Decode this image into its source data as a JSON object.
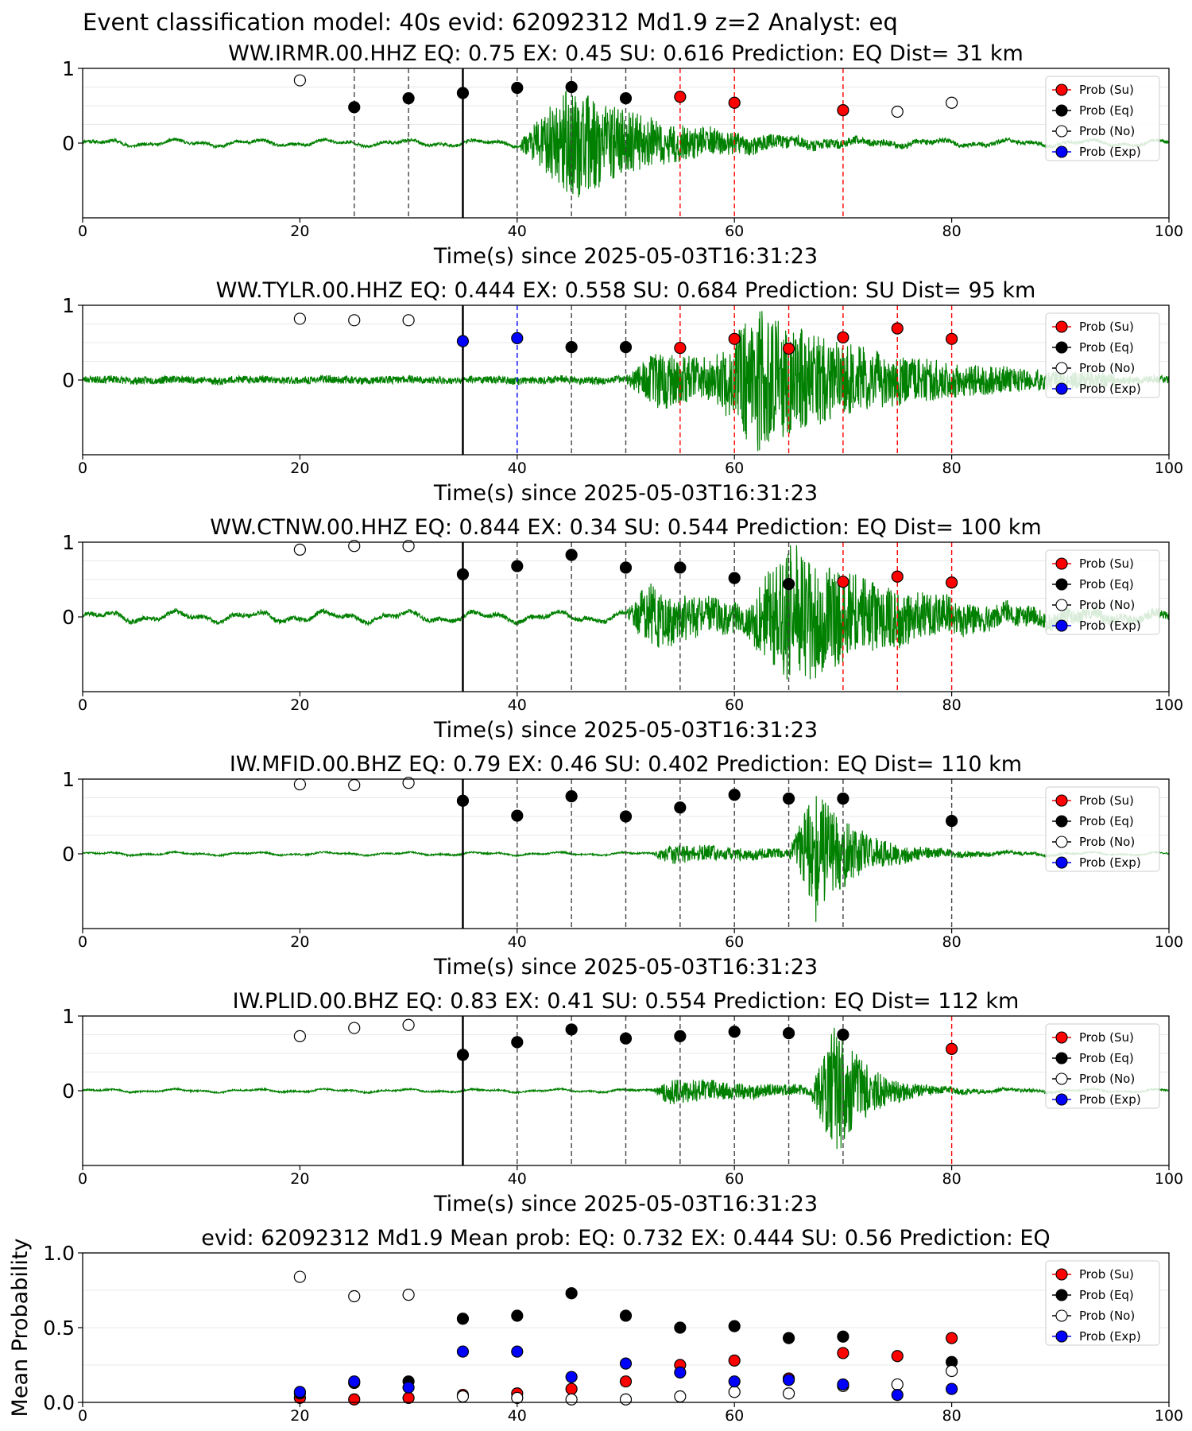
{
  "figure": {
    "suptitle": "Event classification model: 40s evid: 62092312 Md1.9 z=2 Analyst: eq"
  },
  "legend": {
    "entries": [
      {
        "name": "Prob (Su)",
        "color": "#ff0000",
        "fill": "#ff0000"
      },
      {
        "name": "Prob (Eq)",
        "color": "#000000",
        "fill": "#000000"
      },
      {
        "name": "Prob (No)",
        "color": "#000000",
        "fill": "#ffffff"
      },
      {
        "name": "Prob (Exp)",
        "color": "#0000ff",
        "fill": "#0000ff"
      }
    ]
  },
  "colors": {
    "waveform": "#008000",
    "su": "#ff0000",
    "eq": "#000000",
    "no": "#ffffff",
    "exp": "#0000ff"
  },
  "chart_data": [
    {
      "type": "scatter",
      "title": "WW.IRMR.00.HHZ   EQ: 0.75  EX: 0.45  SU: 0.616   Prediction: EQ    Dist= 31 km",
      "xlabel": "Time(s) since 2025-05-03T16:31:23",
      "ylabel": "",
      "xlim": [
        0,
        100
      ],
      "ylim": [
        -1,
        1
      ],
      "xticks": [
        "0",
        "20",
        "40",
        "60",
        "80",
        "100"
      ],
      "yticks": [
        "0",
        "1"
      ],
      "pick_time": 35,
      "vlines": [
        {
          "x": 25,
          "class": "eq"
        },
        {
          "x": 30,
          "class": "eq"
        },
        {
          "x": 40,
          "class": "eq"
        },
        {
          "x": 45,
          "class": "eq"
        },
        {
          "x": 50,
          "class": "eq"
        },
        {
          "x": 55,
          "class": "su"
        },
        {
          "x": 60,
          "class": "su"
        },
        {
          "x": 70,
          "class": "su"
        }
      ],
      "points": [
        {
          "x": 20,
          "y": 0.84,
          "class": "no"
        },
        {
          "x": 25,
          "y": 0.48,
          "class": "eq"
        },
        {
          "x": 30,
          "y": 0.6,
          "class": "eq"
        },
        {
          "x": 35,
          "y": 0.67,
          "class": "eq"
        },
        {
          "x": 40,
          "y": 0.74,
          "class": "eq"
        },
        {
          "x": 45,
          "y": 0.75,
          "class": "eq"
        },
        {
          "x": 50,
          "y": 0.6,
          "class": "eq"
        },
        {
          "x": 55,
          "y": 0.62,
          "class": "su"
        },
        {
          "x": 60,
          "y": 0.54,
          "class": "su"
        },
        {
          "x": 70,
          "y": 0.44,
          "class": "su"
        },
        {
          "x": 75,
          "y": 0.42,
          "class": "no"
        },
        {
          "x": 80,
          "y": 0.54,
          "class": "no"
        }
      ],
      "waveform": {
        "seed": 11,
        "noise": 0.02,
        "sway": 0.03,
        "bursts": [
          {
            "start": 40,
            "end": 90,
            "peak": 45,
            "amp": 0.75,
            "decay": 0.12
          }
        ]
      }
    },
    {
      "type": "scatter",
      "title": "WW.TYLR.00.HHZ   EQ: 0.444  EX: 0.558  SU: 0.684   Prediction: SU    Dist= 95 km",
      "xlabel": "Time(s) since 2025-05-03T16:31:23",
      "ylabel": "",
      "xlim": [
        0,
        100
      ],
      "ylim": [
        -1,
        1
      ],
      "xticks": [
        "0",
        "20",
        "40",
        "60",
        "80",
        "100"
      ],
      "yticks": [
        "0",
        "1"
      ],
      "pick_time": 35,
      "vlines": [
        {
          "x": 40,
          "class": "exp"
        },
        {
          "x": 45,
          "class": "eq"
        },
        {
          "x": 50,
          "class": "eq"
        },
        {
          "x": 55,
          "class": "su"
        },
        {
          "x": 60,
          "class": "su"
        },
        {
          "x": 65,
          "class": "su"
        },
        {
          "x": 70,
          "class": "su"
        },
        {
          "x": 75,
          "class": "su"
        },
        {
          "x": 80,
          "class": "su"
        }
      ],
      "points": [
        {
          "x": 20,
          "y": 0.82,
          "class": "no"
        },
        {
          "x": 25,
          "y": 0.8,
          "class": "no"
        },
        {
          "x": 30,
          "y": 0.8,
          "class": "no"
        },
        {
          "x": 35,
          "y": 0.52,
          "class": "exp"
        },
        {
          "x": 40,
          "y": 0.56,
          "class": "exp"
        },
        {
          "x": 45,
          "y": 0.44,
          "class": "eq"
        },
        {
          "x": 50,
          "y": 0.44,
          "class": "eq"
        },
        {
          "x": 55,
          "y": 0.43,
          "class": "su"
        },
        {
          "x": 60,
          "y": 0.55,
          "class": "su"
        },
        {
          "x": 65,
          "y": 0.42,
          "class": "su"
        },
        {
          "x": 70,
          "y": 0.57,
          "class": "su"
        },
        {
          "x": 75,
          "y": 0.69,
          "class": "su"
        },
        {
          "x": 80,
          "y": 0.55,
          "class": "su"
        }
      ],
      "waveform": {
        "seed": 23,
        "noise": 0.05,
        "sway": 0.01,
        "bursts": [
          {
            "start": 50,
            "end": 95,
            "peak": 53,
            "amp": 0.35,
            "decay": 0.08
          },
          {
            "start": 58,
            "end": 95,
            "peak": 62,
            "amp": 0.75,
            "decay": 0.09
          }
        ]
      }
    },
    {
      "type": "scatter",
      "title": "WW.CTNW.00.HHZ   EQ: 0.844  EX: 0.34  SU: 0.544   Prediction: EQ    Dist= 100 km",
      "xlabel": "Time(s) since 2025-05-03T16:31:23",
      "ylabel": "",
      "xlim": [
        0,
        100
      ],
      "ylim": [
        -1,
        1
      ],
      "xticks": [
        "0",
        "20",
        "40",
        "60",
        "80",
        "100"
      ],
      "yticks": [
        "0",
        "1"
      ],
      "pick_time": 35,
      "vlines": [
        {
          "x": 40,
          "class": "eq"
        },
        {
          "x": 45,
          "class": "eq"
        },
        {
          "x": 50,
          "class": "eq"
        },
        {
          "x": 55,
          "class": "eq"
        },
        {
          "x": 60,
          "class": "eq"
        },
        {
          "x": 65,
          "class": "eq"
        },
        {
          "x": 70,
          "class": "su"
        },
        {
          "x": 75,
          "class": "su"
        },
        {
          "x": 80,
          "class": "su"
        }
      ],
      "points": [
        {
          "x": 20,
          "y": 0.9,
          "class": "no"
        },
        {
          "x": 25,
          "y": 0.95,
          "class": "no"
        },
        {
          "x": 30,
          "y": 0.95,
          "class": "no"
        },
        {
          "x": 35,
          "y": 0.57,
          "class": "eq"
        },
        {
          "x": 40,
          "y": 0.68,
          "class": "eq"
        },
        {
          "x": 45,
          "y": 0.83,
          "class": "eq"
        },
        {
          "x": 50,
          "y": 0.66,
          "class": "eq"
        },
        {
          "x": 55,
          "y": 0.66,
          "class": "eq"
        },
        {
          "x": 60,
          "y": 0.52,
          "class": "eq"
        },
        {
          "x": 65,
          "y": 0.44,
          "class": "eq"
        },
        {
          "x": 70,
          "y": 0.47,
          "class": "su"
        },
        {
          "x": 75,
          "y": 0.54,
          "class": "su"
        },
        {
          "x": 80,
          "y": 0.46,
          "class": "su"
        }
      ],
      "waveform": {
        "seed": 37,
        "noise": 0.03,
        "sway": 0.05,
        "bursts": [
          {
            "start": 50,
            "end": 100,
            "peak": 52,
            "amp": 0.4,
            "decay": 0.1
          },
          {
            "start": 61,
            "end": 100,
            "peak": 65,
            "amp": 0.85,
            "decay": 0.1
          }
        ]
      }
    },
    {
      "type": "scatter",
      "title": "IW.MFID.00.BHZ   EQ: 0.79  EX: 0.46  SU: 0.402   Prediction: EQ    Dist= 110 km",
      "xlabel": "Time(s) since 2025-05-03T16:31:23",
      "ylabel": "",
      "xlim": [
        0,
        100
      ],
      "ylim": [
        -1,
        1
      ],
      "xticks": [
        "0",
        "20",
        "40",
        "60",
        "80",
        "100"
      ],
      "yticks": [
        "0",
        "1"
      ],
      "pick_time": 35,
      "vlines": [
        {
          "x": 40,
          "class": "eq"
        },
        {
          "x": 45,
          "class": "eq"
        },
        {
          "x": 50,
          "class": "eq"
        },
        {
          "x": 55,
          "class": "eq"
        },
        {
          "x": 60,
          "class": "eq"
        },
        {
          "x": 65,
          "class": "eq"
        },
        {
          "x": 70,
          "class": "eq"
        },
        {
          "x": 80,
          "class": "eq"
        }
      ],
      "points": [
        {
          "x": 20,
          "y": 0.93,
          "class": "no"
        },
        {
          "x": 25,
          "y": 0.92,
          "class": "no"
        },
        {
          "x": 30,
          "y": 0.95,
          "class": "no"
        },
        {
          "x": 35,
          "y": 0.71,
          "class": "eq"
        },
        {
          "x": 40,
          "y": 0.51,
          "class": "eq"
        },
        {
          "x": 45,
          "y": 0.77,
          "class": "eq"
        },
        {
          "x": 50,
          "y": 0.5,
          "class": "eq"
        },
        {
          "x": 55,
          "y": 0.62,
          "class": "eq"
        },
        {
          "x": 60,
          "y": 0.79,
          "class": "eq"
        },
        {
          "x": 65,
          "y": 0.74,
          "class": "eq"
        },
        {
          "x": 70,
          "y": 0.74,
          "class": "eq"
        },
        {
          "x": 80,
          "y": 0.44,
          "class": "eq"
        }
      ],
      "waveform": {
        "seed": 51,
        "noise": 0.01,
        "sway": 0.015,
        "bursts": [
          {
            "start": 52.5,
            "end": 90,
            "peak": 54,
            "amp": 0.12,
            "decay": 0.08
          },
          {
            "start": 65,
            "end": 95,
            "peak": 67.5,
            "amp": 0.85,
            "decay": 0.28
          }
        ]
      }
    },
    {
      "type": "scatter",
      "title": "IW.PLID.00.BHZ   EQ: 0.83  EX: 0.41  SU: 0.554   Prediction: EQ    Dist= 112 km",
      "xlabel": "Time(s) since 2025-05-03T16:31:23",
      "ylabel": "",
      "xlim": [
        0,
        100
      ],
      "ylim": [
        -1,
        1
      ],
      "xticks": [
        "0",
        "20",
        "40",
        "60",
        "80",
        "100"
      ],
      "yticks": [
        "0",
        "1"
      ],
      "pick_time": 35,
      "vlines": [
        {
          "x": 40,
          "class": "eq"
        },
        {
          "x": 45,
          "class": "eq"
        },
        {
          "x": 50,
          "class": "eq"
        },
        {
          "x": 55,
          "class": "eq"
        },
        {
          "x": 60,
          "class": "eq"
        },
        {
          "x": 65,
          "class": "eq"
        },
        {
          "x": 70,
          "class": "eq"
        },
        {
          "x": 80,
          "class": "su"
        }
      ],
      "points": [
        {
          "x": 20,
          "y": 0.73,
          "class": "no"
        },
        {
          "x": 25,
          "y": 0.84,
          "class": "no"
        },
        {
          "x": 30,
          "y": 0.88,
          "class": "no"
        },
        {
          "x": 35,
          "y": 0.48,
          "class": "eq"
        },
        {
          "x": 40,
          "y": 0.65,
          "class": "eq"
        },
        {
          "x": 45,
          "y": 0.82,
          "class": "eq"
        },
        {
          "x": 50,
          "y": 0.7,
          "class": "eq"
        },
        {
          "x": 55,
          "y": 0.73,
          "class": "eq"
        },
        {
          "x": 60,
          "y": 0.79,
          "class": "eq"
        },
        {
          "x": 65,
          "y": 0.77,
          "class": "eq"
        },
        {
          "x": 70,
          "y": 0.75,
          "class": "eq"
        },
        {
          "x": 80,
          "y": 0.56,
          "class": "su"
        }
      ],
      "waveform": {
        "seed": 67,
        "noise": 0.01,
        "sway": 0.015,
        "bursts": [
          {
            "start": 52.5,
            "end": 90,
            "peak": 54,
            "amp": 0.17,
            "decay": 0.09
          },
          {
            "start": 67,
            "end": 95,
            "peak": 69.3,
            "amp": 0.85,
            "decay": 0.35
          }
        ]
      }
    },
    {
      "type": "scatter",
      "title": "evid: 62092312  Md1.9   Mean prob:   EQ: 0.732  EX: 0.444  SU: 0.56   Prediction: EQ",
      "xlabel": "",
      "ylabel": "Mean Probability",
      "xlim": [
        0,
        100
      ],
      "ylim": [
        0,
        1
      ],
      "xticks": [
        "0",
        "20",
        "40",
        "60",
        "80",
        "100"
      ],
      "yticks": [
        "0.0",
        "0.5",
        "1.0"
      ],
      "x": [
        20,
        25,
        30,
        35,
        40,
        45,
        50,
        55,
        60,
        65,
        70,
        75,
        80
      ],
      "series": [
        {
          "name": "Prob (Su)",
          "class": "su",
          "values": [
            0.03,
            0.02,
            0.03,
            0.05,
            0.06,
            0.09,
            0.14,
            0.25,
            0.28,
            0.16,
            0.33,
            0.31,
            0.43
          ]
        },
        {
          "name": "Prob (Eq)",
          "class": "eq",
          "values": [
            0.06,
            0.13,
            0.14,
            0.56,
            0.58,
            0.73,
            0.58,
            0.5,
            0.51,
            0.43,
            0.44,
            null,
            0.27
          ]
        },
        {
          "name": "Prob (No)",
          "class": "no",
          "values": [
            0.84,
            0.71,
            0.72,
            0.04,
            0.03,
            0.02,
            0.02,
            0.04,
            0.07,
            0.06,
            0.11,
            0.12,
            0.21
          ]
        },
        {
          "name": "Prob (Exp)",
          "class": "exp",
          "values": [
            0.07,
            0.14,
            0.1,
            0.34,
            0.34,
            0.17,
            0.26,
            0.2,
            0.14,
            0.15,
            0.12,
            0.05,
            0.09
          ]
        }
      ]
    }
  ]
}
